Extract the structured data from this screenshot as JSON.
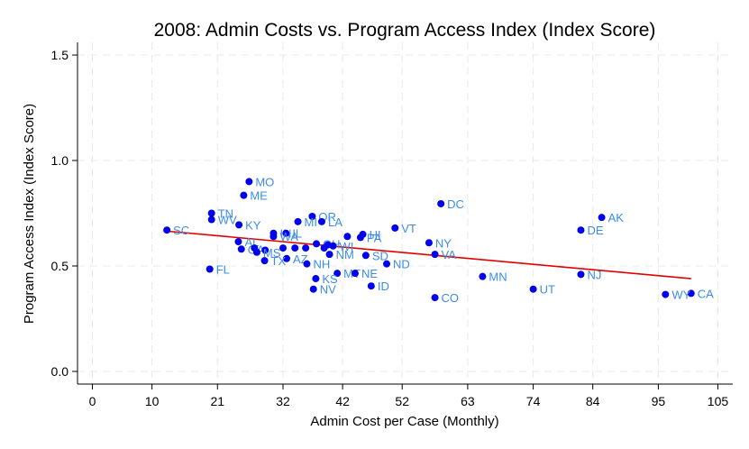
{
  "chart_data": {
    "type": "scatter",
    "title": "2008: Admin Costs vs. Program Access Index (Index Score)",
    "xlabel": "Admin Cost per Case (Monthly)",
    "ylabel": "Program Access Index (Index Score)",
    "xlim": [
      -2.5,
      107.5
    ],
    "ylim": [
      -0.06,
      1.56
    ],
    "xticks": [
      0,
      10,
      21,
      32,
      42,
      52,
      63,
      74,
      84,
      95,
      105
    ],
    "yticks": [
      0.0,
      0.5,
      1.0,
      1.5
    ],
    "ytick_labels": [
      "0.0",
      "0.5",
      "1.0",
      "1.5"
    ],
    "grid": true,
    "point_color": "#0000ee",
    "label_color": "#3c8ce6",
    "fit_color": "#e00000",
    "fit_line": {
      "x": [
        12.5,
        100.5
      ],
      "y": [
        0.665,
        0.44
      ]
    },
    "points": [
      {
        "label": "MO",
        "x": 26.3,
        "y": 0.9
      },
      {
        "label": "ME",
        "x": 25.4,
        "y": 0.835
      },
      {
        "label": "DC",
        "x": 58.5,
        "y": 0.795
      },
      {
        "label": "TN",
        "x": 20.0,
        "y": 0.75
      },
      {
        "label": "WV",
        "x": 20.0,
        "y": 0.72
      },
      {
        "label": "OR",
        "x": 36.9,
        "y": 0.735
      },
      {
        "label": "AK",
        "x": 85.5,
        "y": 0.73
      },
      {
        "label": "MI",
        "x": 34.5,
        "y": 0.71
      },
      {
        "label": "LA",
        "x": 38.5,
        "y": 0.71
      },
      {
        "label": "KY",
        "x": 24.6,
        "y": 0.695
      },
      {
        "label": "VT",
        "x": 50.8,
        "y": 0.68
      },
      {
        "label": "SC",
        "x": 12.5,
        "y": 0.67
      },
      {
        "label": "DE",
        "x": 82.0,
        "y": 0.67
      },
      {
        "label": "IN",
        "x": 30.4,
        "y": 0.655
      },
      {
        "label": "IL",
        "x": 32.5,
        "y": 0.655
      },
      {
        "label": "HI",
        "x": 45.4,
        "y": 0.65
      },
      {
        "label": "WA",
        "x": 30.4,
        "y": 0.64
      },
      {
        "label": "PA",
        "x": 45.0,
        "y": 0.635
      },
      {
        "label": "",
        "x": 42.8,
        "y": 0.64
      },
      {
        "label": "AL",
        "x": 24.5,
        "y": 0.615
      },
      {
        "label": "NY",
        "x": 56.5,
        "y": 0.61
      },
      {
        "label": "OH",
        "x": 37.6,
        "y": 0.605
      },
      {
        "label": "",
        "x": 39.5,
        "y": 0.6
      },
      {
        "label": "WI",
        "x": 40.4,
        "y": 0.595
      },
      {
        "label": "",
        "x": 38.9,
        "y": 0.585
      },
      {
        "label": "",
        "x": 35.8,
        "y": 0.585
      },
      {
        "label": "",
        "x": 34.0,
        "y": 0.585
      },
      {
        "label": "",
        "x": 32.0,
        "y": 0.585
      },
      {
        "label": "GA",
        "x": 25.0,
        "y": 0.58
      },
      {
        "label": "",
        "x": 29.0,
        "y": 0.575
      },
      {
        "label": "",
        "x": 27.2,
        "y": 0.585
      },
      {
        "label": "MS",
        "x": 27.6,
        "y": 0.565
      },
      {
        "label": "VA",
        "x": 57.5,
        "y": 0.555
      },
      {
        "label": "NM",
        "x": 39.8,
        "y": 0.555
      },
      {
        "label": "SD",
        "x": 45.9,
        "y": 0.55
      },
      {
        "label": "AZ",
        "x": 32.6,
        "y": 0.535
      },
      {
        "label": "TX",
        "x": 28.9,
        "y": 0.525
      },
      {
        "label": "NH",
        "x": 36.0,
        "y": 0.51
      },
      {
        "label": "ND",
        "x": 49.4,
        "y": 0.51
      },
      {
        "label": "FL",
        "x": 19.7,
        "y": 0.485
      },
      {
        "label": "MT",
        "x": 41.1,
        "y": 0.465
      },
      {
        "label": "NE",
        "x": 44.1,
        "y": 0.465
      },
      {
        "label": "NJ",
        "x": 82.0,
        "y": 0.46
      },
      {
        "label": "MN",
        "x": 65.5,
        "y": 0.45
      },
      {
        "label": "KS",
        "x": 37.5,
        "y": 0.44
      },
      {
        "label": "ID",
        "x": 46.8,
        "y": 0.405
      },
      {
        "label": "NV",
        "x": 37.1,
        "y": 0.39
      },
      {
        "label": "UT",
        "x": 74.0,
        "y": 0.39
      },
      {
        "label": "CA",
        "x": 100.5,
        "y": 0.37
      },
      {
        "label": "WY",
        "x": 96.2,
        "y": 0.365
      },
      {
        "label": "CO",
        "x": 57.5,
        "y": 0.35
      }
    ]
  }
}
